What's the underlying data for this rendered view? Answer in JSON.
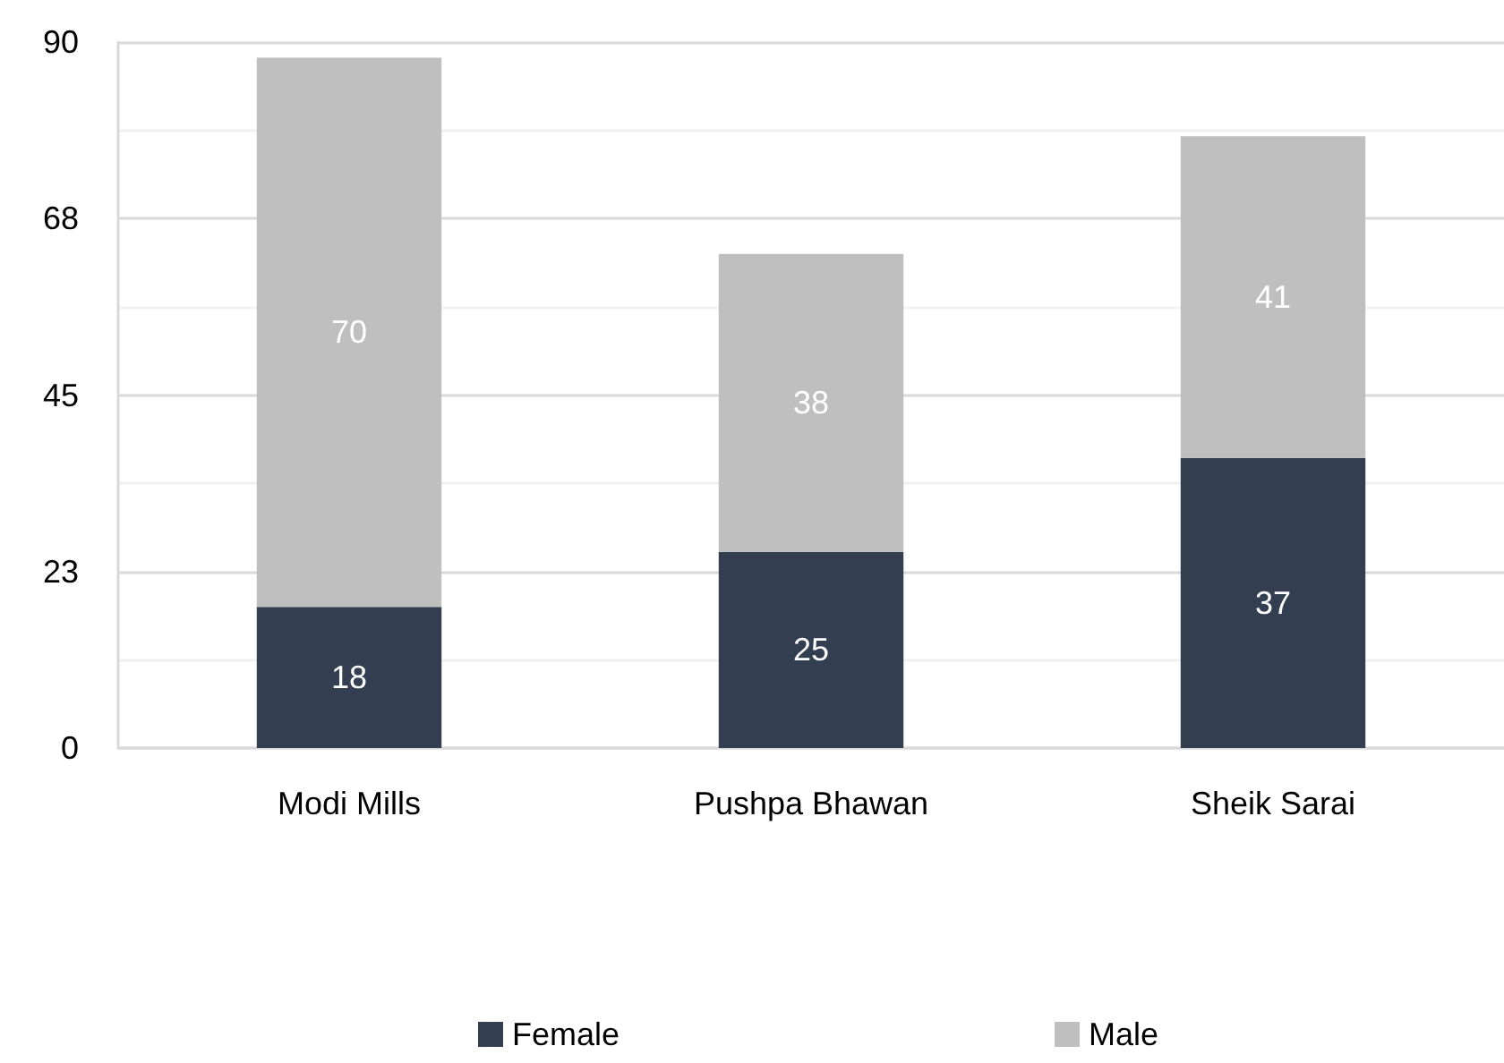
{
  "chart_data": {
    "type": "bar",
    "stacked": true,
    "categories": [
      "Modi Mills",
      "Pushpa Bhawan",
      "Sheik Sarai"
    ],
    "series": [
      {
        "name": "Female",
        "color": "#333f50",
        "values": [
          18,
          25,
          37
        ]
      },
      {
        "name": "Male",
        "color": "#bfbfbf",
        "values": [
          70,
          38,
          41
        ]
      }
    ],
    "ylim": [
      0,
      90
    ],
    "yticks": [
      0,
      {
        "value": 11.25,
        "label": null
      },
      {
        "value": 22.5,
        "label": "23"
      },
      {
        "value": 33.75,
        "label": null
      },
      45,
      {
        "value": 56.25,
        "label": null
      },
      {
        "value": 67.5,
        "label": "68"
      },
      {
        "value": 78.75,
        "label": null
      },
      90
    ],
    "grid": "y",
    "legend": "bottom",
    "data_labels": true
  }
}
